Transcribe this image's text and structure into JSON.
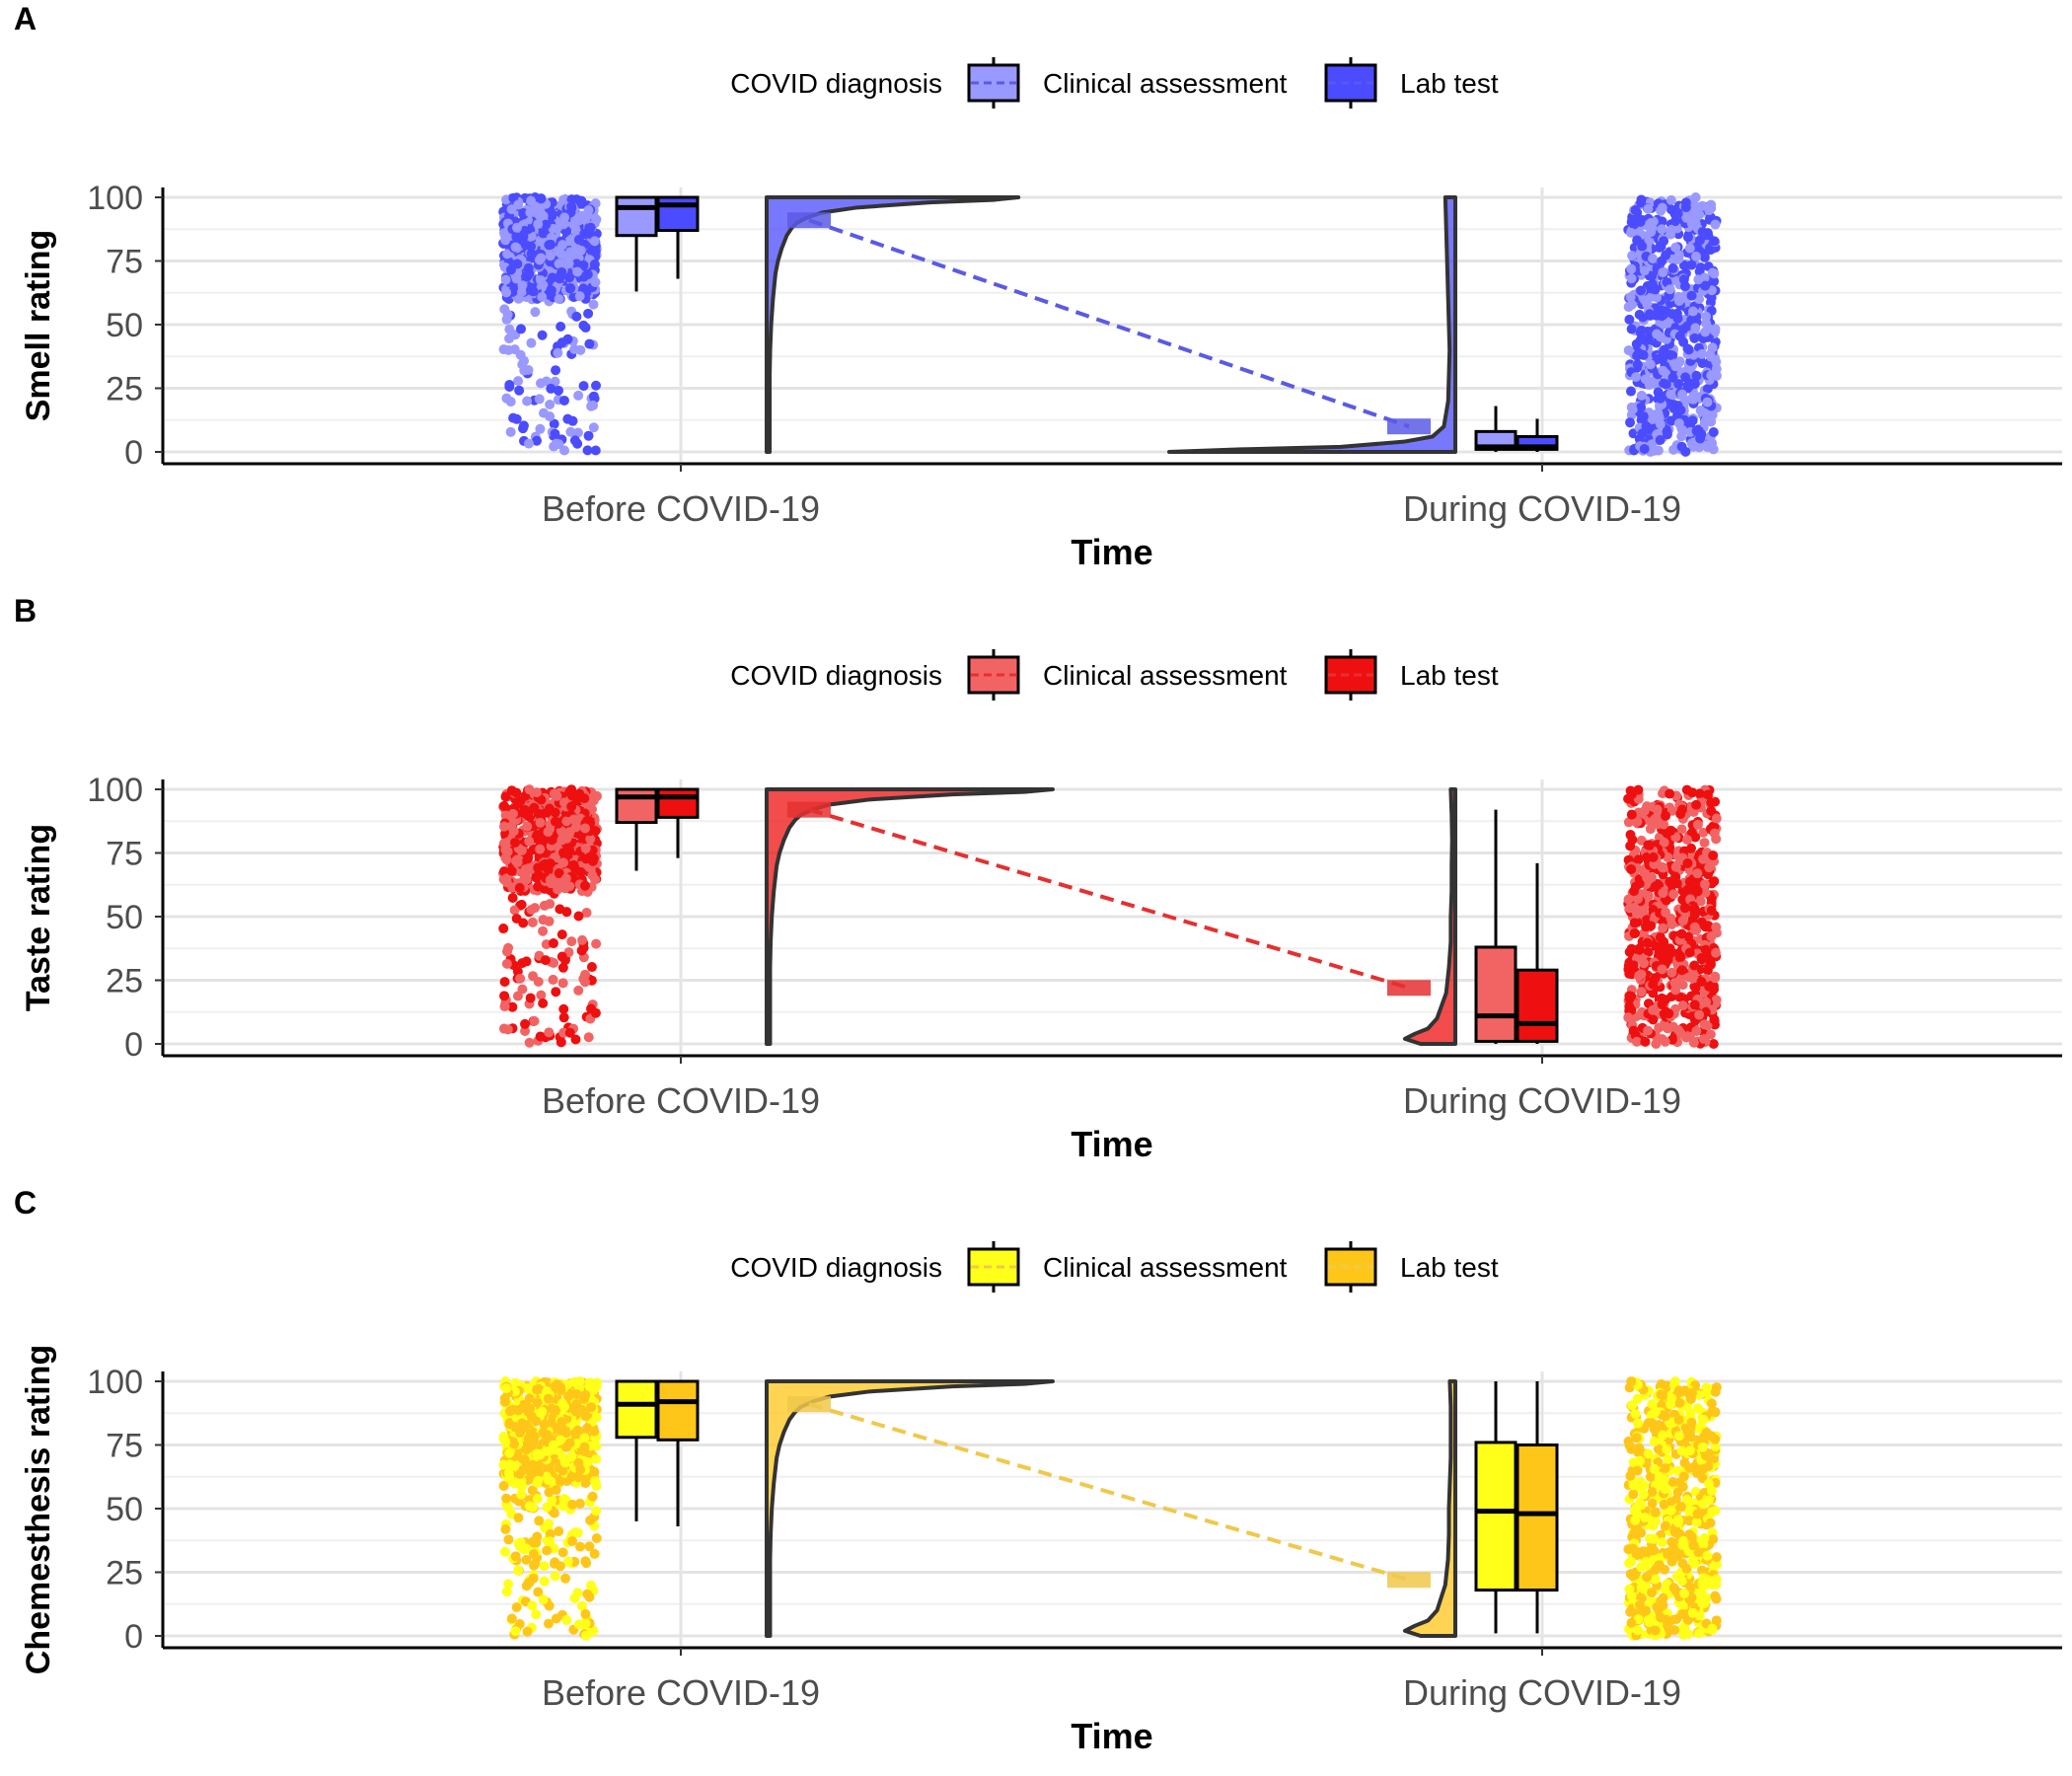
{
  "chart_data": [
    {
      "type": "raincloud",
      "panel_label": "A",
      "title": "",
      "xlabel": "Time",
      "ylabel": "Smell rating",
      "categories": [
        "Before COVID-19",
        "During COVID-19"
      ],
      "ylim": [
        0,
        100
      ],
      "yticks": [
        0,
        25,
        50,
        75,
        100
      ],
      "grid": true,
      "legend": {
        "title": "COVID diagnosis",
        "position": "top",
        "entries": [
          "Clinical assessment",
          "Lab test"
        ]
      },
      "colors": {
        "Clinical assessment": "#9999ff",
        "Lab test": "#4b4bff",
        "mean": "#5a5ae6"
      },
      "series": [
        {
          "name": "Clinical assessment",
          "boxes": [
            {
              "category": "Before COVID-19",
              "min": 63,
              "q1": 85,
              "median": 96,
              "q3": 100,
              "max": 100
            },
            {
              "category": "During COVID-19",
              "min": 0,
              "q1": 1,
              "median": 2,
              "q3": 8,
              "max": 18
            }
          ]
        },
        {
          "name": "Lab test",
          "boxes": [
            {
              "category": "Before COVID-19",
              "min": 68,
              "q1": 87,
              "median": 97,
              "q3": 100,
              "max": 100
            },
            {
              "category": "During COVID-19",
              "min": 0,
              "q1": 1,
              "median": 2,
              "q3": 6,
              "max": 13
            }
          ]
        }
      ],
      "means": [
        {
          "category": "Before COVID-19",
          "value": 91
        },
        {
          "category": "During COVID-19",
          "value": 10
        }
      ]
    },
    {
      "type": "raincloud",
      "panel_label": "B",
      "title": "",
      "xlabel": "Time",
      "ylabel": "Taste rating",
      "categories": [
        "Before COVID-19",
        "During COVID-19"
      ],
      "ylim": [
        0,
        100
      ],
      "yticks": [
        0,
        25,
        50,
        75,
        100
      ],
      "grid": true,
      "legend": {
        "title": "COVID diagnosis",
        "position": "top",
        "entries": [
          "Clinical assessment",
          "Lab test"
        ]
      },
      "colors": {
        "Clinical assessment": "#f26464",
        "Lab test": "#ee1010",
        "mean": "#e53030"
      },
      "series": [
        {
          "name": "Clinical assessment",
          "boxes": [
            {
              "category": "Before COVID-19",
              "min": 68,
              "q1": 87,
              "median": 97,
              "q3": 100,
              "max": 100
            },
            {
              "category": "During COVID-19",
              "min": 0,
              "q1": 1,
              "median": 11,
              "q3": 38,
              "max": 92
            }
          ]
        },
        {
          "name": "Lab test",
          "boxes": [
            {
              "category": "Before COVID-19",
              "min": 73,
              "q1": 89,
              "median": 97,
              "q3": 100,
              "max": 100
            },
            {
              "category": "During COVID-19",
              "min": 0,
              "q1": 1,
              "median": 8,
              "q3": 29,
              "max": 71
            }
          ]
        }
      ],
      "means": [
        {
          "category": "Before COVID-19",
          "value": 92
        },
        {
          "category": "During COVID-19",
          "value": 22
        }
      ]
    },
    {
      "type": "raincloud",
      "panel_label": "C",
      "title": "",
      "xlabel": "Time",
      "ylabel": "Chemesthesis rating",
      "categories": [
        "Before COVID-19",
        "During COVID-19"
      ],
      "ylim": [
        0,
        100
      ],
      "yticks": [
        0,
        25,
        50,
        75,
        100
      ],
      "grid": true,
      "legend": {
        "title": "COVID diagnosis",
        "position": "top",
        "entries": [
          "Clinical assessment",
          "Lab test"
        ]
      },
      "colors": {
        "Clinical assessment": "#ffff1a",
        "Lab test": "#ffc61a",
        "mean": "#f0c84a"
      },
      "series": [
        {
          "name": "Clinical assessment",
          "boxes": [
            {
              "category": "Before COVID-19",
              "min": 45,
              "q1": 78,
              "median": 91,
              "q3": 100,
              "max": 100
            },
            {
              "category": "During COVID-19",
              "min": 1,
              "q1": 18,
              "median": 49,
              "q3": 76,
              "max": 100
            }
          ]
        },
        {
          "name": "Lab test",
          "boxes": [
            {
              "category": "Before COVID-19",
              "min": 43,
              "q1": 77,
              "median": 92,
              "q3": 100,
              "max": 100
            },
            {
              "category": "During COVID-19",
              "min": 1,
              "q1": 18,
              "median": 48,
              "q3": 75,
              "max": 100
            }
          ]
        }
      ],
      "means": [
        {
          "category": "Before COVID-19",
          "value": 91
        },
        {
          "category": "During COVID-19",
          "value": 22
        }
      ]
    }
  ]
}
